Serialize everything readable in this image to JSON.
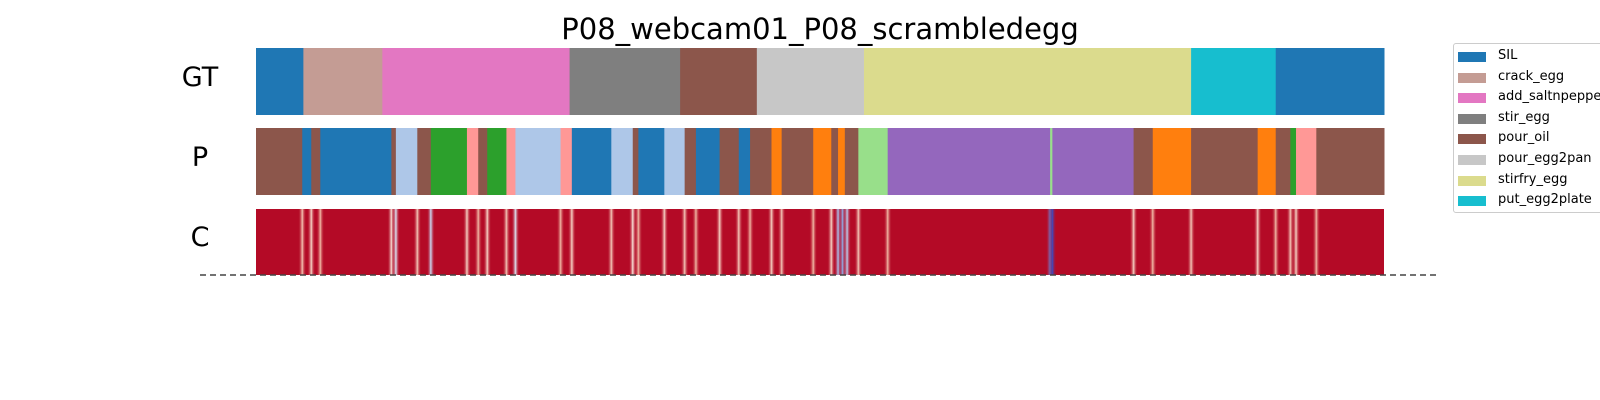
{
  "chart_data": {
    "type": "segmentation_timeline",
    "title": "P08_webcam01_P08_scrambledegg",
    "rows": [
      "GT",
      "P",
      "C"
    ],
    "legend_placement": "right",
    "legend": [
      {
        "name": "SIL",
        "color": "#1f77b4"
      },
      {
        "name": "crack_egg",
        "color": "#c49c94"
      },
      {
        "name": "add_saltnpepper",
        "color": "#e377c2"
      },
      {
        "name": "stir_egg",
        "color": "#7f7f7f"
      },
      {
        "name": "pour_oil",
        "color": "#8c564b"
      },
      {
        "name": "pour_egg2pan",
        "color": "#c7c7c7"
      },
      {
        "name": "stirfry_egg",
        "color": "#dbdb8d"
      },
      {
        "name": "put_egg2plate",
        "color": "#17becf"
      }
    ],
    "gt_segments": [
      {
        "start": 0.0,
        "end": 0.042,
        "color": "#1f77b4"
      },
      {
        "start": 0.042,
        "end": 0.112,
        "color": "#c49c94"
      },
      {
        "start": 0.112,
        "end": 0.278,
        "color": "#e377c2"
      },
      {
        "start": 0.278,
        "end": 0.376,
        "color": "#7f7f7f"
      },
      {
        "start": 0.376,
        "end": 0.444,
        "color": "#8c564b"
      },
      {
        "start": 0.444,
        "end": 0.539,
        "color": "#c7c7c7"
      },
      {
        "start": 0.539,
        "end": 0.829,
        "color": "#dbdb8d"
      },
      {
        "start": 0.829,
        "end": 0.904,
        "color": "#17becf"
      },
      {
        "start": 0.904,
        "end": 1.0,
        "color": "#1f77b4"
      }
    ],
    "pred_segments": [
      {
        "start": 0.0,
        "end": 0.041,
        "color": "#8c564b"
      },
      {
        "start": 0.041,
        "end": 0.049,
        "color": "#1f77b4"
      },
      {
        "start": 0.049,
        "end": 0.057,
        "color": "#8c564b"
      },
      {
        "start": 0.057,
        "end": 0.12,
        "color": "#1f77b4"
      },
      {
        "start": 0.12,
        "end": 0.124,
        "color": "#8c564b"
      },
      {
        "start": 0.124,
        "end": 0.143,
        "color": "#aec7e8"
      },
      {
        "start": 0.143,
        "end": 0.155,
        "color": "#8c564b"
      },
      {
        "start": 0.155,
        "end": 0.187,
        "color": "#2ca02c"
      },
      {
        "start": 0.187,
        "end": 0.197,
        "color": "#ff9896"
      },
      {
        "start": 0.197,
        "end": 0.205,
        "color": "#8c564b"
      },
      {
        "start": 0.205,
        "end": 0.222,
        "color": "#2ca02c"
      },
      {
        "start": 0.222,
        "end": 0.23,
        "color": "#ff9896"
      },
      {
        "start": 0.23,
        "end": 0.27,
        "color": "#aec7e8"
      },
      {
        "start": 0.27,
        "end": 0.28,
        "color": "#ff9896"
      },
      {
        "start": 0.28,
        "end": 0.315,
        "color": "#1f77b4"
      },
      {
        "start": 0.315,
        "end": 0.334,
        "color": "#aec7e8"
      },
      {
        "start": 0.334,
        "end": 0.339,
        "color": "#8c564b"
      },
      {
        "start": 0.339,
        "end": 0.362,
        "color": "#1f77b4"
      },
      {
        "start": 0.362,
        "end": 0.38,
        "color": "#aec7e8"
      },
      {
        "start": 0.38,
        "end": 0.39,
        "color": "#8c564b"
      },
      {
        "start": 0.39,
        "end": 0.411,
        "color": "#1f77b4"
      },
      {
        "start": 0.411,
        "end": 0.428,
        "color": "#8c564b"
      },
      {
        "start": 0.428,
        "end": 0.438,
        "color": "#1f77b4"
      },
      {
        "start": 0.438,
        "end": 0.457,
        "color": "#8c564b"
      },
      {
        "start": 0.457,
        "end": 0.466,
        "color": "#ff7f0e"
      },
      {
        "start": 0.466,
        "end": 0.494,
        "color": "#8c564b"
      },
      {
        "start": 0.494,
        "end": 0.51,
        "color": "#ff7f0e"
      },
      {
        "start": 0.51,
        "end": 0.516,
        "color": "#8c564b"
      },
      {
        "start": 0.516,
        "end": 0.522,
        "color": "#ff7f0e"
      },
      {
        "start": 0.522,
        "end": 0.534,
        "color": "#8c564b"
      },
      {
        "start": 0.534,
        "end": 0.56,
        "color": "#98df8a"
      },
      {
        "start": 0.56,
        "end": 0.704,
        "color": "#9467bd"
      },
      {
        "start": 0.704,
        "end": 0.706,
        "color": "#98df8a"
      },
      {
        "start": 0.706,
        "end": 0.778,
        "color": "#9467bd"
      },
      {
        "start": 0.778,
        "end": 0.795,
        "color": "#8c564b"
      },
      {
        "start": 0.795,
        "end": 0.829,
        "color": "#ff7f0e"
      },
      {
        "start": 0.829,
        "end": 0.888,
        "color": "#8c564b"
      },
      {
        "start": 0.888,
        "end": 0.904,
        "color": "#ff7f0e"
      },
      {
        "start": 0.904,
        "end": 0.917,
        "color": "#8c564b"
      },
      {
        "start": 0.917,
        "end": 0.922,
        "color": "#2ca02c"
      },
      {
        "start": 0.922,
        "end": 0.94,
        "color": "#ff9896"
      },
      {
        "start": 0.94,
        "end": 1.0,
        "color": "#8c564b"
      }
    ],
    "confidence_base_color": "#b40a26",
    "confidence_marks": [
      {
        "pos": 0.041,
        "color": "#f4c2b0"
      },
      {
        "pos": 0.049,
        "color": "#f6d3c4"
      },
      {
        "pos": 0.057,
        "color": "#f0b8a4"
      },
      {
        "pos": 0.12,
        "color": "#f7e0d6"
      },
      {
        "pos": 0.124,
        "color": "#dce6f5"
      },
      {
        "pos": 0.143,
        "color": "#f3c8b8"
      },
      {
        "pos": 0.155,
        "color": "#c9d9f2"
      },
      {
        "pos": 0.187,
        "color": "#f6d3c4"
      },
      {
        "pos": 0.197,
        "color": "#f0b8a4"
      },
      {
        "pos": 0.205,
        "color": "#f6d3c4"
      },
      {
        "pos": 0.222,
        "color": "#f3c8b8"
      },
      {
        "pos": 0.23,
        "color": "#dce6f5"
      },
      {
        "pos": 0.27,
        "color": "#f0b8a4"
      },
      {
        "pos": 0.28,
        "color": "#f6d3c4"
      },
      {
        "pos": 0.315,
        "color": "#f3c8b8"
      },
      {
        "pos": 0.334,
        "color": "#f7e0d6"
      },
      {
        "pos": 0.339,
        "color": "#f0b8a4"
      },
      {
        "pos": 0.362,
        "color": "#f6d3c4"
      },
      {
        "pos": 0.38,
        "color": "#f3c8b8"
      },
      {
        "pos": 0.39,
        "color": "#f0b8a4"
      },
      {
        "pos": 0.411,
        "color": "#f6d3c4"
      },
      {
        "pos": 0.428,
        "color": "#f3c8b8"
      },
      {
        "pos": 0.438,
        "color": "#f0b8a4"
      },
      {
        "pos": 0.457,
        "color": "#f6d3c4"
      },
      {
        "pos": 0.466,
        "color": "#f3c8b8"
      },
      {
        "pos": 0.494,
        "color": "#f0b8a4"
      },
      {
        "pos": 0.51,
        "color": "#f6d3c4"
      },
      {
        "pos": 0.516,
        "color": "#a9c4ee"
      },
      {
        "pos": 0.52,
        "color": "#8fb0ea"
      },
      {
        "pos": 0.524,
        "color": "#b9cff0"
      },
      {
        "pos": 0.534,
        "color": "#f3c8b8"
      },
      {
        "pos": 0.56,
        "color": "#f0b8a4"
      },
      {
        "pos": 0.704,
        "color": "#6a8ee0"
      },
      {
        "pos": 0.706,
        "color": "#3b4cc0"
      },
      {
        "pos": 0.778,
        "color": "#f6d3c4"
      },
      {
        "pos": 0.795,
        "color": "#f0b8a4"
      },
      {
        "pos": 0.829,
        "color": "#f3c8b8"
      },
      {
        "pos": 0.888,
        "color": "#f6d3c4"
      },
      {
        "pos": 0.904,
        "color": "#f0b8a4"
      },
      {
        "pos": 0.917,
        "color": "#f3c8b8"
      },
      {
        "pos": 0.922,
        "color": "#f6d3c4"
      },
      {
        "pos": 0.94,
        "color": "#f0b8a4"
      }
    ]
  }
}
